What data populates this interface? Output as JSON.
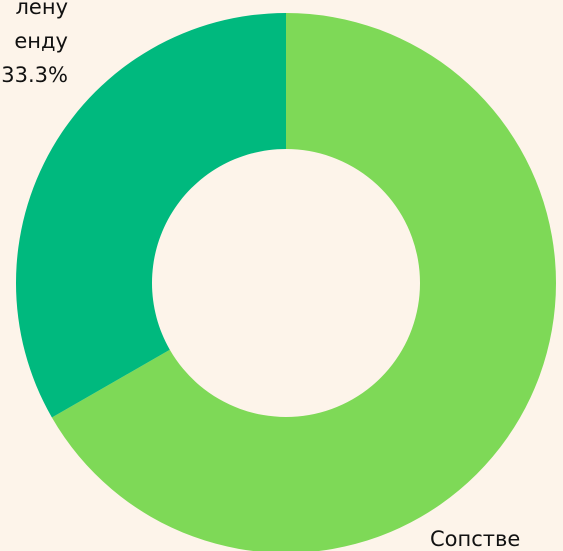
{
  "chart_data": {
    "type": "donut",
    "slices": [
      {
        "label_lines": [
          "Сопстве"
        ],
        "value": 66.7,
        "color": "#7ed957"
      },
      {
        "label_lines": [
          "лену",
          "енду"
        ],
        "value": 33.3,
        "value_label": "33.3%",
        "color": "#00b97e"
      }
    ]
  }
}
